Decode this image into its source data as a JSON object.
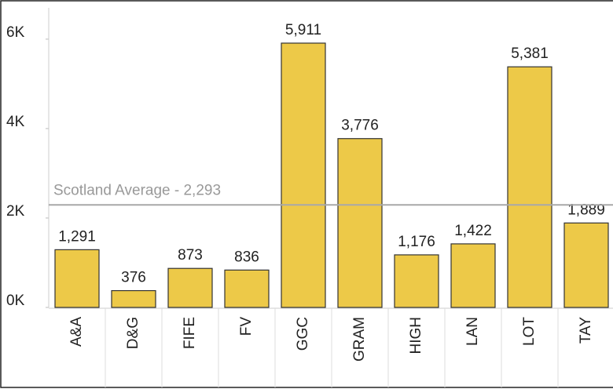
{
  "chart_data": {
    "type": "bar",
    "categories": [
      "A&A",
      "D&G",
      "FIFE",
      "FV",
      "GGC",
      "GRAM",
      "HIGH",
      "LAN",
      "LOT",
      "TAY"
    ],
    "values": [
      1291,
      376,
      873,
      836,
      5911,
      3776,
      1176,
      1422,
      5381,
      1889
    ],
    "value_labels": [
      "1,291",
      "376",
      "873",
      "836",
      "5,911",
      "3,776",
      "1,176",
      "1,422",
      "5,381",
      "1,889"
    ],
    "color": "#edc948",
    "ylim": [
      0,
      6700
    ],
    "yticks": [
      {
        "value": 0,
        "label": "0K"
      },
      {
        "value": 2000,
        "label": "2K"
      },
      {
        "value": 4000,
        "label": "4K"
      },
      {
        "value": 6000,
        "label": "6K"
      }
    ],
    "reference_line": {
      "label": "Scotland Average - 2,293",
      "value": 2293,
      "color": "#a8a8a8"
    }
  }
}
